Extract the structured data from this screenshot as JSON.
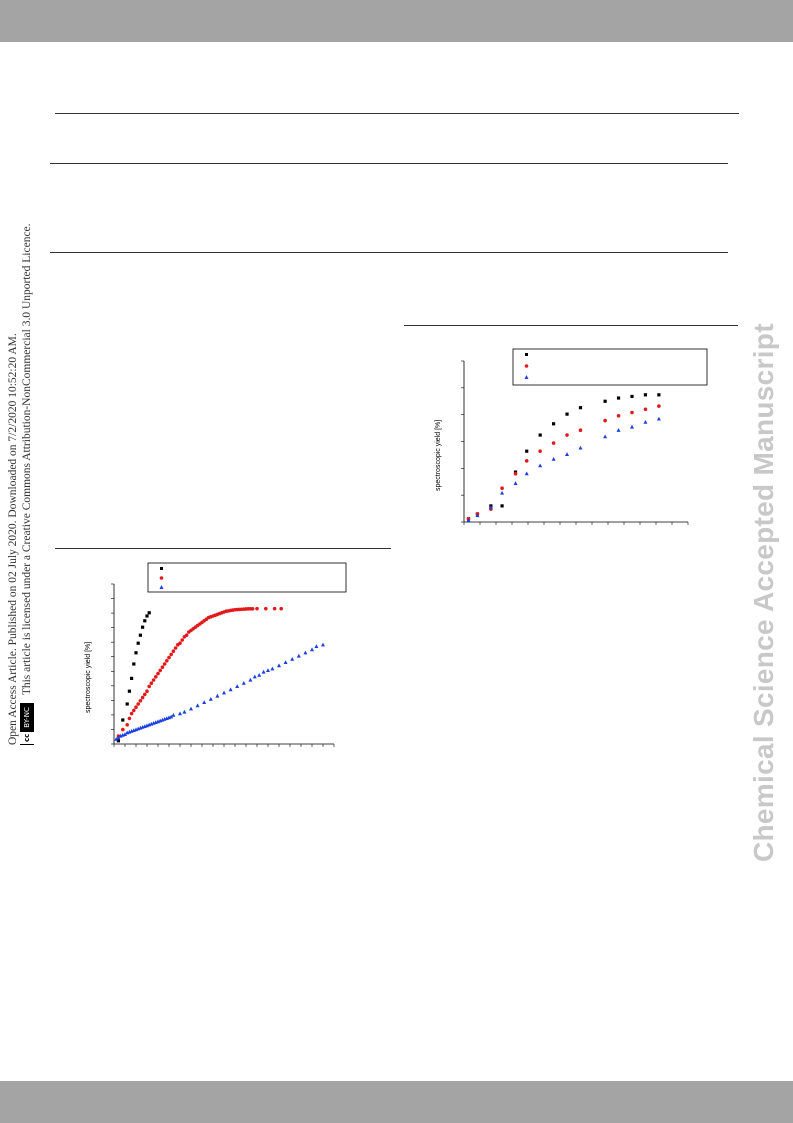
{
  "side_note": {
    "line1": "Open Access Article. Published on 02 July 2020. Downloaded on 7/2/2020 10:52:20 AM.",
    "line2": "This article is licensed under a Creative Commons Attribution-NonCommercial 3.0 Unported Licence.",
    "badge_cc": "cc",
    "badge_tag": "BY-NC"
  },
  "watermark": "Chemical Science Accepted Manuscript",
  "colors": {
    "series1": "#000000",
    "series2": "#e31a1c",
    "series3": "#1a3fe0",
    "bars": "#a4a4a4"
  },
  "chart_data": [
    {
      "type": "scatter",
      "ylabel": "spectroscopic yield [%]",
      "xlim": [
        0,
        100
      ],
      "ylim": [
        0,
        100
      ],
      "series": [
        {
          "marker": "square",
          "color": "#000000",
          "x": [
            2,
            4,
            6,
            7,
            8,
            9,
            10,
            11,
            12,
            13,
            14,
            15,
            16
          ],
          "y": [
            2,
            15,
            25,
            33,
            41,
            50,
            57,
            63,
            68,
            73,
            77,
            80,
            82
          ]
        },
        {
          "marker": "circle",
          "color": "#e31a1c",
          "x": [
            2,
            4,
            6,
            7,
            8,
            9,
            10,
            11,
            12,
            13,
            14,
            15,
            16,
            17,
            18,
            19,
            20,
            21,
            22,
            23,
            24,
            25,
            26,
            27,
            28,
            29,
            30,
            31,
            32,
            33,
            34,
            35,
            36,
            37,
            38,
            39,
            40,
            41,
            42,
            43,
            44,
            45,
            46,
            47,
            48,
            49,
            50,
            51,
            52,
            53,
            54,
            55,
            56,
            57,
            58,
            59,
            60,
            61,
            62,
            63,
            65,
            69,
            73,
            76
          ],
          "y": [
            5,
            9,
            12,
            16,
            19,
            21,
            23,
            25,
            27,
            29,
            31,
            33,
            36,
            38,
            40,
            42,
            44,
            46,
            48,
            50,
            52,
            54,
            56,
            58,
            60,
            62,
            63,
            65,
            67,
            68,
            70,
            71,
            72,
            73,
            74,
            75,
            76,
            77,
            78,
            79,
            79.5,
            80,
            80.5,
            81,
            81.5,
            82,
            82.5,
            83,
            83.2,
            83.5,
            83.7,
            83.9,
            84,
            84.1,
            84.2,
            84.3,
            84.4,
            84.5,
            84.5,
            84.5,
            84.6,
            84.6,
            84.6,
            84.6
          ]
        },
        {
          "marker": "triangle",
          "color": "#1a3fe0",
          "x": [
            1,
            2,
            3,
            4,
            5,
            6,
            7,
            8,
            9,
            10,
            11,
            12,
            13,
            14,
            15,
            16,
            17,
            18,
            19,
            20,
            21,
            22,
            23,
            24,
            25,
            26,
            27,
            30,
            32,
            35,
            38,
            41,
            44,
            47,
            50,
            53,
            56,
            59,
            62,
            64,
            66,
            68,
            70,
            72,
            75,
            78,
            81,
            84,
            87,
            90,
            92,
            95
          ],
          "y": [
            3,
            4,
            5,
            5.5,
            6,
            7,
            7.5,
            8,
            8.5,
            9,
            9.5,
            10,
            10.5,
            11,
            11.5,
            12,
            12.5,
            13,
            13.5,
            14,
            14.5,
            15,
            15.5,
            16,
            16.5,
            17,
            18,
            19,
            20,
            22,
            24,
            26,
            28,
            30,
            32,
            34,
            36,
            38,
            40,
            42,
            43,
            45,
            46,
            47,
            49,
            51,
            53,
            55,
            57,
            59,
            61,
            62
          ]
        }
      ]
    },
    {
      "type": "scatter",
      "ylabel": "spectroscopic yield [%]",
      "xlim": [
        0,
        100
      ],
      "ylim": [
        0,
        100
      ],
      "series": [
        {
          "marker": "square",
          "color": "#000000",
          "x": [
            2,
            6,
            12,
            17,
            23,
            28,
            34,
            40,
            46,
            52,
            63,
            69,
            75,
            81,
            87
          ],
          "y": [
            2,
            5,
            10,
            10,
            31,
            44,
            54,
            61,
            67,
            71,
            75,
            77,
            78,
            79,
            79
          ]
        },
        {
          "marker": "circle",
          "color": "#e31a1c",
          "x": [
            2,
            6,
            12,
            17,
            23,
            28,
            34,
            40,
            46,
            52,
            63,
            69,
            75,
            81,
            87
          ],
          "y": [
            2,
            5,
            8,
            21,
            30,
            38,
            44,
            49,
            54,
            57,
            63,
            66,
            68,
            70,
            72
          ]
        },
        {
          "marker": "triangle",
          "color": "#1a3fe0",
          "x": [
            2,
            6,
            12,
            17,
            23,
            28,
            34,
            40,
            46,
            52,
            63,
            69,
            75,
            81,
            87
          ],
          "y": [
            1,
            4,
            9,
            18,
            24,
            30,
            35,
            39,
            42,
            46,
            53,
            57,
            59,
            62,
            64
          ]
        }
      ]
    }
  ]
}
